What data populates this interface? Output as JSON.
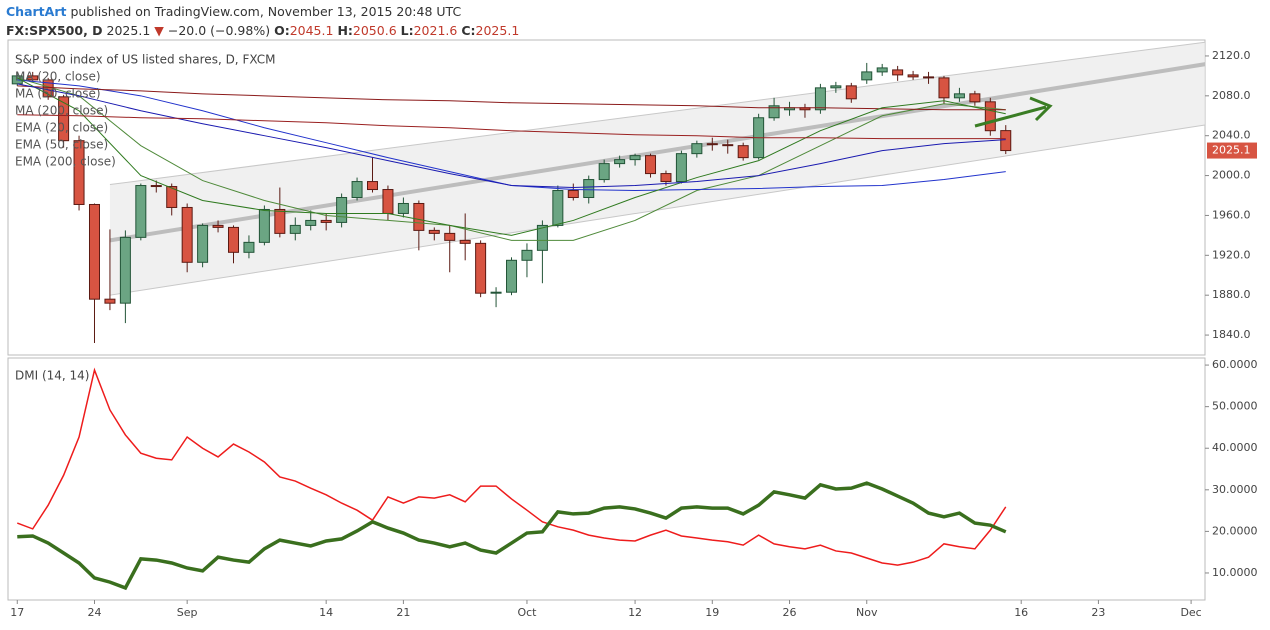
{
  "header": {
    "author": "ChartArt",
    "published": "published on TradingView.com, November 13, 2015 20:48 UTC",
    "symbol": "FX:SPX500, D",
    "last": "2025.1",
    "arrow": "▼",
    "change": "−20.0 (−0.98%)",
    "ohlc": [
      {
        "label": "O:",
        "value": "2045.1"
      },
      {
        "label": "H:",
        "value": "2050.6"
      },
      {
        "label": "L:",
        "value": "2021.6"
      },
      {
        "label": "C:",
        "value": "2025.1"
      }
    ]
  },
  "chart_data": [
    {
      "type": "candlestick",
      "title": "S&P 500 index of US listed shares, D, FXCM",
      "xlim": [
        -0.6,
        76.9
      ],
      "ylim": [
        1820,
        2136
      ],
      "yticks": [
        {
          "value": 1840,
          "label": "1840.0"
        },
        {
          "value": 1880,
          "label": "1880.0"
        },
        {
          "value": 1920,
          "label": "1920.0"
        },
        {
          "value": 1960,
          "label": "1960.0"
        },
        {
          "value": 2000,
          "label": "2000.0"
        },
        {
          "value": 2040,
          "label": "2040.0"
        },
        {
          "value": 2080,
          "label": "2080.0"
        },
        {
          "value": 2120,
          "label": "2120.0"
        }
      ],
      "up_color": "#6ba583",
      "down_color": "#d75442",
      "open": [
        2092,
        2100,
        2096,
        2079,
        2035,
        1971,
        1876,
        1872,
        1938,
        1990,
        1989,
        1968,
        1913,
        1950,
        1948,
        1923,
        1933,
        1966,
        1942,
        1950,
        1955,
        1953,
        1978,
        1994,
        1986,
        1962,
        1972,
        1945,
        1942,
        1935,
        1932,
        1882,
        1883,
        1915,
        1925,
        1950,
        1985,
        1978,
        1996,
        2012,
        2016,
        2020,
        2002,
        1994,
        2022,
        2032,
        2031,
        2030,
        2018,
        2058,
        2066,
        2068,
        2066,
        2088,
        2090,
        2096,
        2104,
        2106,
        2101,
        2099,
        2098,
        2078,
        2082,
        2074,
        2045.1
      ],
      "high": [
        2103,
        2104,
        2098,
        2081,
        2040,
        1972,
        1946,
        1945,
        1992,
        1995,
        1992,
        1972,
        1952,
        1955,
        1950,
        1940,
        1970,
        1988,
        1958,
        1965,
        1962,
        1982,
        1998,
        2018,
        1990,
        1978,
        1975,
        1948,
        1950,
        1962,
        1935,
        1888,
        1918,
        1932,
        1955,
        1990,
        1992,
        2000,
        2016,
        2020,
        2022,
        2022,
        2005,
        2025,
        2035,
        2038,
        2036,
        2033,
        2062,
        2078,
        2074,
        2072,
        2092,
        2094,
        2093,
        2113,
        2112,
        2110,
        2105,
        2104,
        2100,
        2088,
        2085,
        2078,
        2050.6
      ],
      "low": [
        2090,
        2094,
        2076,
        2028,
        1965,
        1832,
        1865,
        1852,
        1935,
        1983,
        1960,
        1903,
        1908,
        1943,
        1912,
        1917,
        1930,
        1938,
        1935,
        1945,
        1945,
        1948,
        1975,
        1983,
        1955,
        1958,
        1925,
        1935,
        1903,
        1915,
        1878,
        1868,
        1880,
        1898,
        1892,
        1948,
        1975,
        1972,
        1993,
        2008,
        2010,
        1998,
        1990,
        1992,
        2018,
        2025,
        2022,
        2015,
        2016,
        2055,
        2060,
        2058,
        2062,
        2083,
        2073,
        2092,
        2100,
        2095,
        2096,
        2092,
        2072,
        2074,
        2070,
        2040,
        2021.6
      ],
      "close": [
        2100,
        2096,
        2079,
        2035,
        1971,
        1876,
        1872,
        1938,
        1990,
        1989,
        1968,
        1913,
        1950,
        1948,
        1923,
        1933,
        1966,
        1942,
        1950,
        1955,
        1953,
        1978,
        1994,
        1986,
        1962,
        1972,
        1945,
        1942,
        1935,
        1932,
        1882,
        1883,
        1915,
        1925,
        1950,
        1985,
        1978,
        1996,
        2012,
        2016,
        2020,
        2002,
        1994,
        2022,
        2032,
        2031,
        2030,
        2018,
        2058,
        2070,
        2068,
        2066,
        2088,
        2090,
        2077,
        2104,
        2108,
        2101,
        2099,
        2098,
        2078,
        2082,
        2074,
        2045,
        2025.1
      ],
      "series": [
        {
          "name": "MA (20, close)",
          "color": "#4f8a3a",
          "width": 1,
          "x": [
            0,
            4,
            8,
            12,
            16,
            20,
            24,
            28,
            32,
            36,
            40,
            44,
            48,
            52,
            56,
            60,
            64
          ],
          "values": [
            2098,
            2080,
            2030,
            1995,
            1975,
            1960,
            1955,
            1950,
            1935,
            1935,
            1955,
            1985,
            2000,
            2030,
            2060,
            2072,
            2066
          ]
        },
        {
          "name": "MA (50, close)",
          "color": "#2233cc",
          "width": 1,
          "x": [
            0,
            4,
            8,
            12,
            16,
            20,
            24,
            28,
            32,
            36,
            40,
            44,
            48,
            52,
            56,
            60,
            64
          ],
          "values": [
            2096,
            2090,
            2080,
            2065,
            2048,
            2033,
            2018,
            2004,
            1990,
            1986,
            1985,
            1986,
            1987,
            1989,
            1990,
            1996,
            2004
          ]
        },
        {
          "name": "MA (200, close)",
          "color": "#8b1a1a",
          "width": 1,
          "x": [
            0,
            4,
            8,
            12,
            16,
            20,
            24,
            28,
            32,
            36,
            40,
            44,
            48,
            52,
            56,
            60,
            64
          ],
          "values": [
            2090,
            2087,
            2085,
            2082,
            2080,
            2078,
            2076,
            2075,
            2073,
            2072,
            2071,
            2070,
            2068,
            2068,
            2067,
            2066,
            2066
          ]
        },
        {
          "name": "EMA (20, close)",
          "color": "#2f7a1f",
          "width": 1,
          "x": [
            0,
            4,
            8,
            12,
            16,
            20,
            24,
            28,
            32,
            36,
            40,
            44,
            48,
            52,
            56,
            60,
            64
          ],
          "values": [
            2098,
            2065,
            2000,
            1975,
            1965,
            1962,
            1962,
            1950,
            1940,
            1955,
            1978,
            1998,
            2015,
            2045,
            2068,
            2075,
            2062
          ]
        },
        {
          "name": "EMA (50, close)",
          "color": "#1a1ab0",
          "width": 1,
          "x": [
            0,
            4,
            8,
            12,
            16,
            20,
            24,
            28,
            32,
            36,
            40,
            44,
            48,
            52,
            56,
            60,
            64
          ],
          "values": [
            2092,
            2080,
            2065,
            2052,
            2040,
            2028,
            2015,
            2002,
            1990,
            1988,
            1990,
            1994,
            2000,
            2012,
            2025,
            2032,
            2036
          ]
        },
        {
          "name": "EMA (200, close)",
          "color": "#9a2020",
          "width": 1,
          "x": [
            0,
            4,
            8,
            12,
            16,
            20,
            24,
            28,
            32,
            36,
            40,
            44,
            48,
            52,
            56,
            60,
            64
          ],
          "values": [
            2061,
            2060,
            2058,
            2057,
            2055,
            2053,
            2050,
            2048,
            2045,
            2043,
            2041,
            2040,
            2038,
            2038,
            2037,
            2037,
            2037
          ]
        }
      ],
      "channel": {
        "x": [
          6,
          77
        ],
        "upper": [
          1991,
          2134
        ],
        "middle": [
          1935,
          2112
        ],
        "lower": [
          1880,
          2051
        ]
      }
    },
    {
      "type": "line",
      "title": "DMI (14, 14)",
      "xlim": [
        -0.6,
        76.9
      ],
      "ylim": [
        3.5,
        61.7
      ],
      "yticks": [
        {
          "value": 10,
          "label": "10.0000"
        },
        {
          "value": 20,
          "label": "20.0000"
        },
        {
          "value": 30,
          "label": "30.0000"
        },
        {
          "value": 40,
          "label": "40.0000"
        },
        {
          "value": 50,
          "label": "50.0000"
        },
        {
          "value": 60,
          "label": "60.0000"
        }
      ],
      "xticks": [
        {
          "value": 0,
          "label": "17"
        },
        {
          "value": 5,
          "label": "24"
        },
        {
          "value": 11,
          "label": "Sep"
        },
        {
          "value": 20,
          "label": "14"
        },
        {
          "value": 25,
          "label": "21"
        },
        {
          "value": 33,
          "label": "Oct"
        },
        {
          "value": 40,
          "label": "12"
        },
        {
          "value": 45,
          "label": "19"
        },
        {
          "value": 50,
          "label": "26"
        },
        {
          "value": 55,
          "label": "Nov"
        },
        {
          "value": 65,
          "label": "16"
        },
        {
          "value": 70,
          "label": "23"
        },
        {
          "value": 76,
          "label": "Dec"
        }
      ],
      "series": [
        {
          "color": "#ee1c1c",
          "width": 1.5,
          "values": [
            22,
            20.6,
            26.3,
            33.5,
            42.7,
            58.8,
            49.2,
            43.2,
            38.8,
            37.6,
            37.2,
            42.7,
            40,
            37.9,
            41,
            39.1,
            36.7,
            33.1,
            32.1,
            30.4,
            28.8,
            26.8,
            25.1,
            22.7,
            28.3,
            26.8,
            28.3,
            28,
            28.8,
            27.1,
            30.9,
            30.9,
            27.8,
            25.1,
            22.3,
            21.1,
            20.3,
            19.1,
            18.4,
            17.9,
            17.7,
            19.1,
            20.3,
            18.9,
            18.4,
            17.9,
            17.5,
            16.7,
            19.1,
            17,
            16.3,
            15.8,
            16.7,
            15.3,
            14.8,
            13.6,
            12.4,
            11.9,
            12.6,
            13.8,
            17,
            16.3,
            15.8,
            20.3,
            25.9
          ]
        },
        {
          "color": "#3a6f1e",
          "width": 3.5,
          "values": [
            18.7,
            18.9,
            17.2,
            14.8,
            12.4,
            8.8,
            7.8,
            6.4,
            13.4,
            13.1,
            12.4,
            11.2,
            10.5,
            13.8,
            13.1,
            12.6,
            15.8,
            17.9,
            17.2,
            16.5,
            17.7,
            18.2,
            20.1,
            22.3,
            20.8,
            19.6,
            17.9,
            17.2,
            16.3,
            17.2,
            15.5,
            14.8,
            17.2,
            19.6,
            19.9,
            24.7,
            24.2,
            24.4,
            25.6,
            25.9,
            25.4,
            24.4,
            23.2,
            25.6,
            25.9,
            25.6,
            25.6,
            24.2,
            26.3,
            29.5,
            28.8,
            28,
            31.2,
            30.2,
            30.4,
            31.6,
            30.2,
            28.5,
            26.8,
            24.4,
            23.5,
            24.4,
            22,
            21.5,
            19.9
          ]
        }
      ]
    }
  ]
}
